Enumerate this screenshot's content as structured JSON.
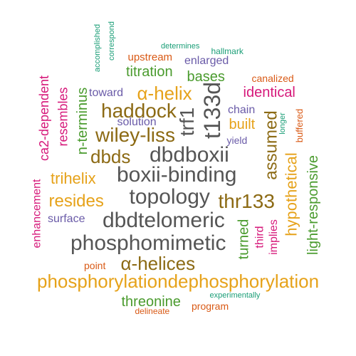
{
  "words": [
    {
      "text": "phosphorylationdephosphorylation",
      "color": "#E6A21A",
      "rotated": false
    },
    {
      "text": "phosphomimetic",
      "color": "#555555",
      "rotated": false
    },
    {
      "text": "dbdtelomeric",
      "color": "#555555",
      "rotated": false
    },
    {
      "text": "topology",
      "color": "#555555",
      "rotated": false
    },
    {
      "text": "boxii-binding",
      "color": "#555555",
      "rotated": false
    },
    {
      "text": "dbdboxii",
      "color": "#555555",
      "rotated": false
    },
    {
      "text": "haddock",
      "color": "#8C6A14",
      "rotated": false
    },
    {
      "text": "wiley-liss",
      "color": "#8C6A14",
      "rotated": false
    },
    {
      "text": "α-helices",
      "color": "#8C6A14",
      "rotated": false
    },
    {
      "text": "thr133",
      "color": "#8C6A14",
      "rotated": false
    },
    {
      "text": "t133d",
      "color": "#555555",
      "rotated": true
    },
    {
      "text": "trf1",
      "color": "#555555",
      "rotated": true
    },
    {
      "text": "α-helix",
      "color": "#E6A21A",
      "rotated": false
    },
    {
      "text": "dbds",
      "color": "#8C6A14",
      "rotated": false
    },
    {
      "text": "trihelix",
      "color": "#E6A21A",
      "rotated": false
    },
    {
      "text": "resides",
      "color": "#E6A21A",
      "rotated": false
    },
    {
      "text": "assumed",
      "color": "#8C6A14",
      "rotated": true
    },
    {
      "text": "hypothetical",
      "color": "#E6A21A",
      "rotated": true
    },
    {
      "text": "light-responsive",
      "color": "#4A9B2E",
      "rotated": true
    },
    {
      "text": "n-terminus",
      "color": "#4A9B2E",
      "rotated": true
    },
    {
      "text": "turned",
      "color": "#4A9B2E",
      "rotated": true
    },
    {
      "text": "threonine",
      "color": "#4A9B2E",
      "rotated": false
    },
    {
      "text": "titration",
      "color": "#4A9B2E",
      "rotated": false
    },
    {
      "text": "bases",
      "color": "#4A9B2E",
      "rotated": false
    },
    {
      "text": "built",
      "color": "#E6A21A",
      "rotated": false
    },
    {
      "text": "identical",
      "color": "#D6187A",
      "rotated": false
    },
    {
      "text": "ca2-dependent",
      "color": "#D6187A",
      "rotated": true
    },
    {
      "text": "resembles",
      "color": "#D6187A",
      "rotated": true
    },
    {
      "text": "enhancement",
      "color": "#D6187A",
      "rotated": true
    },
    {
      "text": "third",
      "color": "#D6187A",
      "rotated": true
    },
    {
      "text": "implies",
      "color": "#D6187A",
      "rotated": true
    },
    {
      "text": "enlarged",
      "color": "#6A5BA8",
      "rotated": false
    },
    {
      "text": "chain",
      "color": "#6A5BA8",
      "rotated": false
    },
    {
      "text": "toward",
      "color": "#6A5BA8",
      "rotated": false
    },
    {
      "text": "solution",
      "color": "#6A5BA8",
      "rotated": false
    },
    {
      "text": "surface",
      "color": "#6A5BA8",
      "rotated": false
    },
    {
      "text": "yield",
      "color": "#6A5BA8",
      "rotated": false
    },
    {
      "text": "upstream",
      "color": "#D95A16",
      "rotated": false
    },
    {
      "text": "canalized",
      "color": "#D95A16",
      "rotated": false
    },
    {
      "text": "buffered",
      "color": "#D95A16",
      "rotated": true
    },
    {
      "text": "point",
      "color": "#D95A16",
      "rotated": false
    },
    {
      "text": "program",
      "color": "#D95A16",
      "rotated": false
    },
    {
      "text": "delineate",
      "color": "#D95A16",
      "rotated": false
    },
    {
      "text": "hallmark",
      "color": "#1B9E77",
      "rotated": false
    },
    {
      "text": "determines",
      "color": "#1B9E77",
      "rotated": false
    },
    {
      "text": "accomplished",
      "color": "#1B9E77",
      "rotated": true
    },
    {
      "text": "correspond",
      "color": "#1B9E77",
      "rotated": true
    },
    {
      "text": "longer",
      "color": "#1B9E77",
      "rotated": true
    },
    {
      "text": "experimentally",
      "color": "#1B9E77",
      "rotated": false
    }
  ]
}
